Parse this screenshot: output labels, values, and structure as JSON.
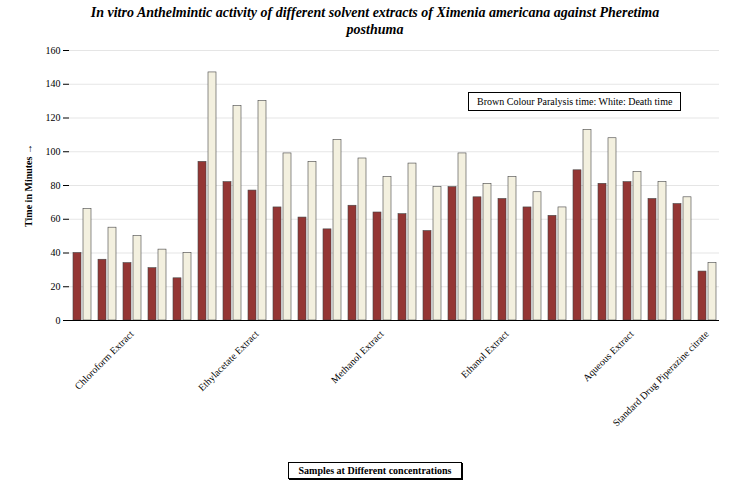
{
  "chart_data": {
    "type": "bar",
    "title": "In vitro Anthelmintic activity of different solvent extracts of Ximenia americana against Pheretima posthuma",
    "x_label": "Samples at Different concentrations",
    "y_label": "Time in Minutes",
    "annotation": "Brown Colour Paralysis time: White: Death time",
    "categories": [
      null,
      null,
      "Chloroform Extract",
      null,
      null,
      null,
      null,
      "Ethylacetate Extract",
      null,
      null,
      null,
      null,
      "Methanol Extract",
      null,
      null,
      null,
      null,
      "Ethanol Extract",
      null,
      null,
      null,
      null,
      "Aqueous Extract",
      null,
      null,
      "Standard Drug Piperazine citrate"
    ],
    "series": [
      {
        "name": "Paralysis time",
        "color": "#943634",
        "values": [
          40,
          36,
          34,
          31,
          25,
          94,
          82,
          77,
          67,
          61,
          54,
          68,
          64,
          63,
          53,
          79,
          73,
          72,
          67,
          62,
          89,
          81,
          82,
          72,
          69,
          29
        ]
      },
      {
        "name": "Death time",
        "color": "#f3f0df",
        "values": [
          66,
          55,
          50,
          42,
          40,
          147,
          127,
          130,
          99,
          94,
          107,
          96,
          85,
          93,
          79,
          99,
          81,
          85,
          76,
          67,
          113,
          108,
          88,
          82,
          73,
          34
        ]
      }
    ],
    "ylim": [
      0,
      160
    ],
    "yticks": [
      0,
      20,
      40,
      60,
      80,
      100,
      120,
      140,
      160
    ],
    "grid": true
  }
}
